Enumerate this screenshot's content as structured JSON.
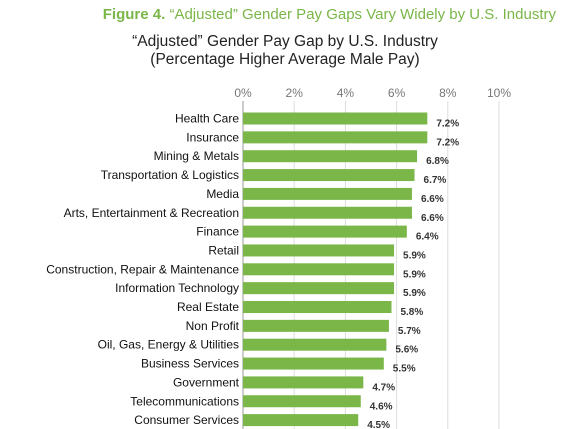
{
  "figure": {
    "number_label": "Figure 4.",
    "caption": "“Adjusted” Gender Pay Gaps Vary Widely by U.S. Industry"
  },
  "colors": {
    "accent": "#7ab648",
    "bar": "#7ab648",
    "grid": "#dddddd",
    "axis": "#999999"
  },
  "chart_data": {
    "type": "bar",
    "orientation": "horizontal",
    "title": "“Adjusted” Gender Pay Gap by U.S. Industry",
    "subtitle": "(Percentage Higher Average Male Pay)",
    "xlim": [
      0,
      10
    ],
    "x_ticks": [
      0,
      2,
      4,
      6,
      8,
      10
    ],
    "x_tick_labels": [
      "0%",
      "2%",
      "4%",
      "6%",
      "8%",
      "10%"
    ],
    "grid": true,
    "categories": [
      "Health Care",
      "Insurance",
      "Mining & Metals",
      "Transportation & Logistics",
      "Media",
      "Arts, Entertainment & Recreation",
      "Finance",
      "Retail",
      "Construction, Repair & Maintenance",
      "Information Technology",
      "Real Estate",
      "Non Profit",
      "Oil, Gas, Energy & Utilities",
      "Business Services",
      "Government",
      "Telecommunications",
      "Consumer Services"
    ],
    "values": [
      7.2,
      7.2,
      6.8,
      6.7,
      6.6,
      6.6,
      6.4,
      5.9,
      5.9,
      5.9,
      5.8,
      5.7,
      5.6,
      5.5,
      4.7,
      4.6,
      4.5
    ],
    "value_labels": [
      "7.2%",
      "7.2%",
      "6.8%",
      "6.7%",
      "6.6%",
      "6.6%",
      "6.4%",
      "5.9%",
      "5.9%",
      "5.9%",
      "5.8%",
      "5.7%",
      "5.6%",
      "5.5%",
      "4.7%",
      "4.6%",
      "4.5%"
    ]
  }
}
